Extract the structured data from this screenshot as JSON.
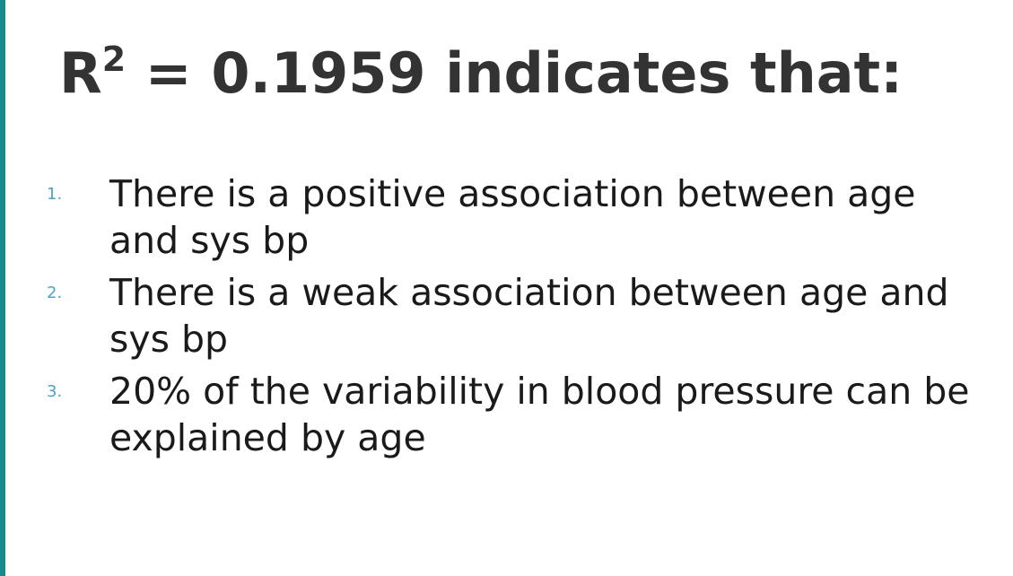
{
  "slide": {
    "accent_color": "#1A8A8A",
    "title_main": "R",
    "title_sup": "2",
    "title_rest": " = 0.1959 indicates that:",
    "items": [
      {
        "number": "1.",
        "text": "There is a positive association between age and sys bp"
      },
      {
        "number": "2.",
        "text": "There is a weak association between age and sys bp"
      },
      {
        "number": "3.",
        "text": "20% of the variability in blood pressure can be explained by age"
      }
    ]
  }
}
